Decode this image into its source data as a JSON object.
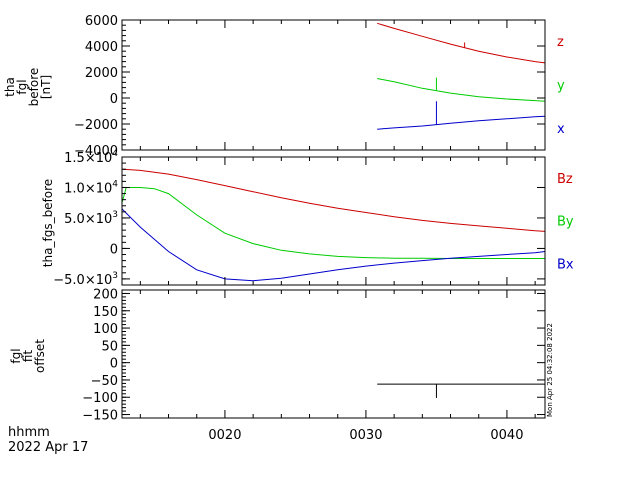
{
  "chart_data": [
    {
      "type": "line",
      "panel_labels": [
        "tha",
        "fgl",
        "before",
        "[nT]"
      ],
      "ylim": [
        -4000,
        6000
      ],
      "y_ticks": [
        -4000,
        -2000,
        0,
        2000,
        4000,
        6000
      ],
      "y_tick_labels": [
        "−4000",
        "−2000",
        "0",
        "2000",
        "4000",
        "6000"
      ],
      "series": [
        {
          "name": "z",
          "color": "#cc0000",
          "x": [
            30.8,
            32,
            34,
            36,
            38,
            40,
            42,
            42.7
          ],
          "values": [
            5750,
            5350,
            4750,
            4150,
            3600,
            3150,
            2800,
            2700
          ],
          "spikes": [
            {
              "x": 37.0,
              "dy": 400
            }
          ]
        },
        {
          "name": "y",
          "color": "#00cc00",
          "x": [
            30.8,
            32,
            34,
            36,
            38,
            40,
            42,
            42.7
          ],
          "values": [
            1500,
            1250,
            750,
            380,
            100,
            -80,
            -200,
            -250
          ],
          "spikes": [
            {
              "x": 35.0,
              "dy": 1000
            }
          ]
        },
        {
          "name": "x",
          "color": "#0000cc",
          "x": [
            30.8,
            32,
            34,
            36,
            38,
            40,
            42,
            42.7
          ],
          "values": [
            -2400,
            -2300,
            -2150,
            -1950,
            -1750,
            -1600,
            -1450,
            -1400
          ],
          "spikes": [
            {
              "x": 35.0,
              "dy": 1800
            }
          ]
        }
      ]
    },
    {
      "type": "line",
      "panel_labels": [
        "tha_fgs_before"
      ],
      "ylim": [
        -6000,
        15000
      ],
      "y_ticks": [
        -5000,
        0,
        5000,
        10000,
        15000
      ],
      "y_tick_labels": [
        {
          "mant": "−5.0×10",
          "exp": "3"
        },
        {
          "mant": "0",
          "exp": ""
        },
        {
          "mant": "5.0×10",
          "exp": "3"
        },
        {
          "mant": "1.0×10",
          "exp": "4"
        },
        {
          "mant": "1.5×10",
          "exp": "4"
        }
      ],
      "series": [
        {
          "name": "Bz",
          "color": "#cc0000",
          "x": [
            12.7,
            14,
            16,
            18,
            20,
            22,
            24,
            26,
            28,
            30,
            32,
            34,
            36,
            38,
            40,
            42,
            42.7
          ],
          "values": [
            13000,
            12800,
            12200,
            11300,
            10300,
            9300,
            8300,
            7400,
            6600,
            5900,
            5200,
            4600,
            4100,
            3700,
            3300,
            2900,
            2800
          ]
        },
        {
          "name": "By",
          "color": "#00cc00",
          "x": [
            12.7,
            13,
            14,
            15,
            16,
            18,
            20,
            22,
            24,
            26,
            28,
            30,
            32,
            34,
            36,
            38,
            40,
            42,
            42.7
          ],
          "values": [
            7500,
            10000,
            10000,
            9800,
            9000,
            5500,
            2500,
            800,
            -300,
            -900,
            -1300,
            -1500,
            -1600,
            -1600,
            -1650,
            -1650,
            -1650,
            -1650,
            -1650
          ]
        },
        {
          "name": "Bx",
          "color": "#0000cc",
          "x": [
            12.7,
            13,
            14,
            16,
            18,
            20,
            22,
            24,
            26,
            28,
            30,
            32,
            34,
            36,
            38,
            40,
            42,
            42.7
          ],
          "values": [
            6500,
            5800,
            3500,
            -500,
            -3500,
            -5000,
            -5300,
            -4900,
            -4200,
            -3500,
            -2900,
            -2400,
            -2000,
            -1600,
            -1300,
            -1000,
            -700,
            -500
          ]
        }
      ]
    },
    {
      "type": "line",
      "panel_labels": [
        "fgl",
        "fit",
        "offset"
      ],
      "ylim": [
        -160,
        210
      ],
      "y_ticks": [
        -150,
        -100,
        -50,
        0,
        50,
        100,
        150,
        200
      ],
      "y_tick_labels": [
        "−150",
        "−100",
        "−50",
        "0",
        "50",
        "100",
        "150",
        "200"
      ],
      "series": [
        {
          "name": "",
          "color": "#000000",
          "x": [
            30.8,
            42.7
          ],
          "values": [
            -62,
            -62
          ],
          "spikes": [
            {
              "x": 35.0,
              "dy": -40
            }
          ]
        }
      ]
    }
  ],
  "x_axis": {
    "xlim": [
      12.7,
      42.7
    ],
    "ticks": [
      20,
      30,
      40
    ],
    "tick_labels": [
      "0020",
      "0030",
      "0040"
    ]
  },
  "footer": {
    "format": "hhmm",
    "date": "2022 Apr 17",
    "stamp": "Mon Apr 25 04:32:08 2022"
  }
}
